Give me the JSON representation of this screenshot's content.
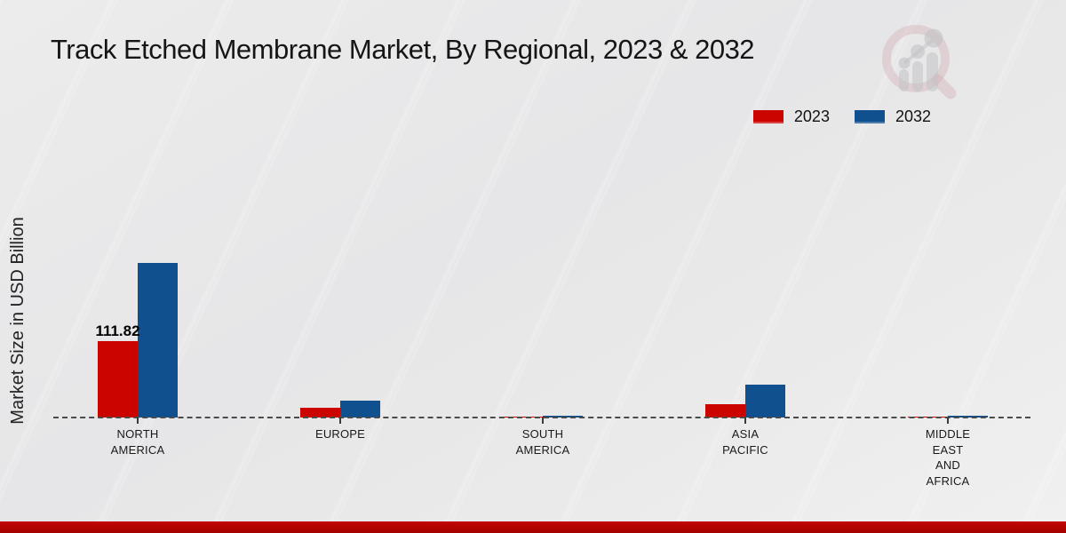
{
  "title": "Track Etched Membrane Market, By Regional, 2023 & 2032",
  "ylabel": "Market Size in USD Billion",
  "chart_data": {
    "type": "bar",
    "title": "Track Etched Membrane Market, By Regional, 2023 & 2032",
    "xlabel": "",
    "ylabel": "Market Size in USD Billion",
    "categories": [
      "North America",
      "Europe",
      "South America",
      "Asia Pacific",
      "Middle East And Africa"
    ],
    "series": [
      {
        "name": "2023",
        "color": "#cc0400",
        "values": [
          111.82,
          14,
          1.3,
          19.5,
          0.9
        ]
      },
      {
        "name": "2032",
        "color": "#11508f",
        "values": [
          226,
          25,
          2.4,
          48,
          2.6
        ]
      }
    ],
    "data_labels": [
      {
        "series_index": 0,
        "category_index": 0,
        "text": "111.82"
      }
    ],
    "ylim": [
      0,
      240
    ],
    "grid": false,
    "baseline_style": "dashed",
    "legend_position": "top-right"
  },
  "colors": {
    "series_2023": "#cc0400",
    "series_2032": "#11508f",
    "footer_band": "#b30300",
    "baseline": "#4b4b4b"
  },
  "watermark_icon": "market-research-magnifier-logo"
}
